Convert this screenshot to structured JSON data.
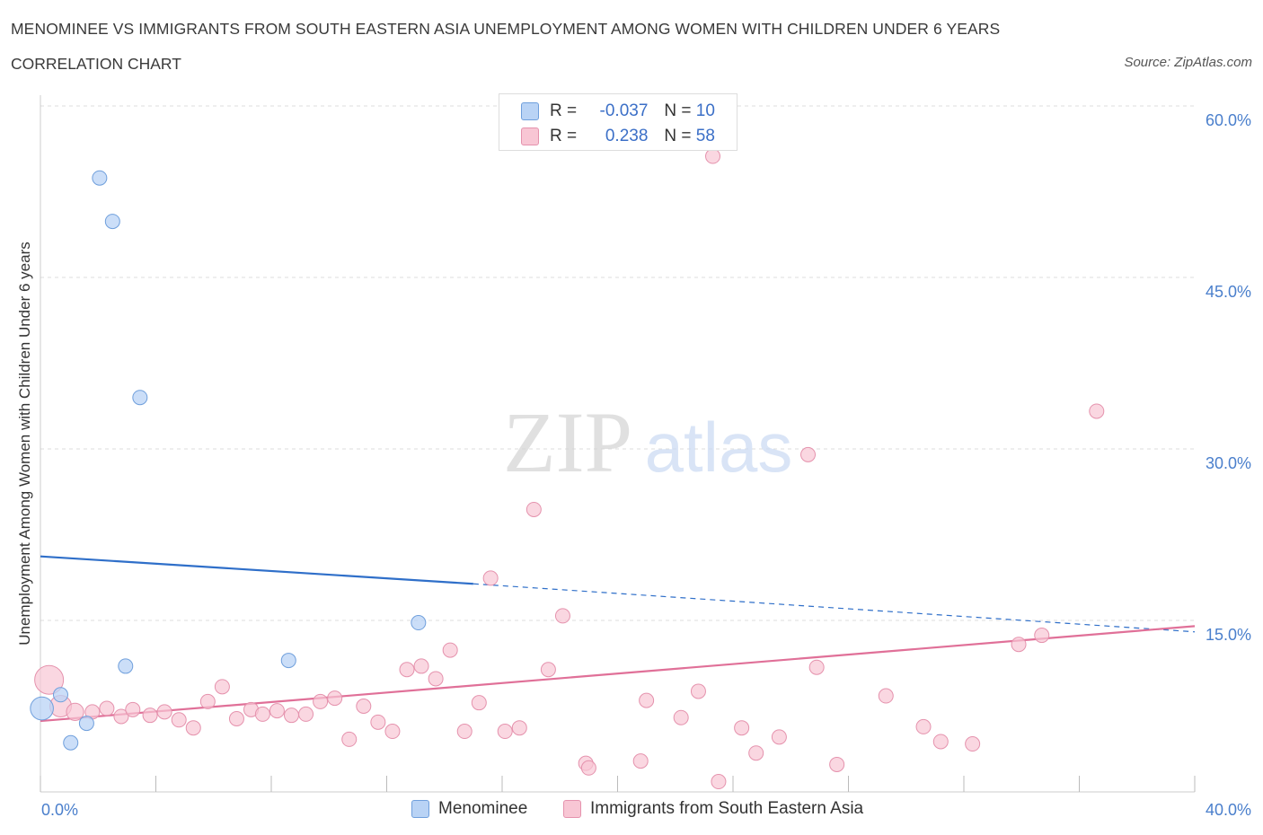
{
  "header": {
    "title": "MENOMINEE VS IMMIGRANTS FROM SOUTH EASTERN ASIA UNEMPLOYMENT AMONG WOMEN WITH CHILDREN UNDER 6 YEARS",
    "subtitle": "CORRELATION CHART",
    "source": "Source: ZipAtlas.com"
  },
  "watermark": {
    "zip": "ZIP",
    "atlas": "atlas"
  },
  "stats": {
    "r_label": "R =",
    "n_label": "N =",
    "rows": [
      {
        "r": "-0.037",
        "n": "10"
      },
      {
        "r": "0.238",
        "n": "58"
      }
    ]
  },
  "colors": {
    "menominee_fill": "#b9d3f5",
    "menominee_stroke": "#6f9fdc",
    "menominee_line": "#2f6fc9",
    "immigrants_fill": "#f8c6d4",
    "immigrants_stroke": "#e592ad",
    "immigrants_line": "#e07098",
    "tick_label": "#4a7fcc",
    "grid": "#dcdcdc"
  },
  "chart_data": {
    "type": "scatter",
    "title": "MENOMINEE VS IMMIGRANTS FROM SOUTH EASTERN ASIA UNEMPLOYMENT AMONG WOMEN WITH CHILDREN UNDER 6 YEARS",
    "xlabel": "",
    "ylabel": "Unemployment Among Women with Children Under 6 years",
    "xlim": [
      0,
      40
    ],
    "ylim": [
      0,
      60
    ],
    "x_tick_labels": [
      "0.0%",
      "40.0%"
    ],
    "y_ticks": [
      15,
      30,
      45,
      60
    ],
    "y_tick_labels": [
      "15.0%",
      "30.0%",
      "45.0%",
      "60.0%"
    ],
    "grid": true,
    "legend_position": "bottom",
    "series": [
      {
        "name": "Menominee",
        "r": -0.037,
        "n": 10,
        "points": [
          [
            0.05,
            7.3,
            1.6
          ],
          [
            0.7,
            8.5,
            1.0
          ],
          [
            1.05,
            4.3,
            1.0
          ],
          [
            1.6,
            6.0,
            1.0
          ],
          [
            2.05,
            53.7,
            1.0
          ],
          [
            2.5,
            49.9,
            1.0
          ],
          [
            2.95,
            11.0,
            1.0
          ],
          [
            3.45,
            34.5,
            1.0
          ],
          [
            8.6,
            11.5,
            1.0
          ],
          [
            13.1,
            14.8,
            1.0
          ]
        ],
        "trend": {
          "x_solid": [
            0,
            15
          ],
          "y_solid": [
            20.6,
            18.2
          ],
          "x_dashed": [
            15,
            40
          ],
          "y_dashed": [
            18.2,
            14.0
          ]
        }
      },
      {
        "name": "Immigrants from South Eastern Asia",
        "r": 0.238,
        "n": 58,
        "points": [
          [
            0.3,
            9.8,
            2.0
          ],
          [
            0.7,
            7.5,
            1.5
          ],
          [
            1.2,
            7.0,
            1.2
          ],
          [
            1.8,
            7.0,
            1.0
          ],
          [
            2.3,
            7.3,
            1.0
          ],
          [
            2.8,
            6.6,
            1.0
          ],
          [
            3.2,
            7.2,
            1.0
          ],
          [
            3.8,
            6.7,
            1.0
          ],
          [
            4.3,
            7.0,
            1.0
          ],
          [
            4.8,
            6.3,
            1.0
          ],
          [
            5.3,
            5.6,
            1.0
          ],
          [
            5.8,
            7.9,
            1.0
          ],
          [
            6.3,
            9.2,
            1.0
          ],
          [
            6.8,
            6.4,
            1.0
          ],
          [
            7.3,
            7.2,
            1.0
          ],
          [
            7.7,
            6.8,
            1.0
          ],
          [
            8.2,
            7.1,
            1.0
          ],
          [
            8.7,
            6.7,
            1.0
          ],
          [
            9.2,
            6.8,
            1.0
          ],
          [
            9.7,
            7.9,
            1.0
          ],
          [
            10.2,
            8.2,
            1.0
          ],
          [
            10.7,
            4.6,
            1.0
          ],
          [
            11.2,
            7.5,
            1.0
          ],
          [
            11.7,
            6.1,
            1.0
          ],
          [
            12.2,
            5.3,
            1.0
          ],
          [
            12.7,
            10.7,
            1.0
          ],
          [
            13.2,
            11.0,
            1.0
          ],
          [
            13.7,
            9.9,
            1.0
          ],
          [
            14.2,
            12.4,
            1.0
          ],
          [
            14.7,
            5.3,
            1.0
          ],
          [
            15.2,
            7.8,
            1.0
          ],
          [
            15.6,
            18.7,
            1.0
          ],
          [
            16.1,
            5.3,
            1.0
          ],
          [
            16.6,
            5.6,
            1.0
          ],
          [
            17.1,
            24.7,
            1.0
          ],
          [
            17.6,
            10.7,
            1.0
          ],
          [
            18.1,
            15.4,
            1.0
          ],
          [
            18.9,
            2.5,
            1.0
          ],
          [
            19.0,
            2.1,
            1.0
          ],
          [
            20.8,
            2.7,
            1.0
          ],
          [
            21.0,
            8.0,
            1.0
          ],
          [
            22.2,
            6.5,
            1.0
          ],
          [
            22.8,
            8.8,
            1.0
          ],
          [
            23.3,
            55.6,
            1.0
          ],
          [
            23.5,
            0.9,
            1.0
          ],
          [
            24.3,
            5.6,
            1.0
          ],
          [
            24.8,
            3.4,
            1.0
          ],
          [
            25.6,
            4.8,
            1.0
          ],
          [
            26.6,
            29.5,
            1.0
          ],
          [
            26.9,
            10.9,
            1.0
          ],
          [
            27.6,
            2.4,
            1.0
          ],
          [
            29.3,
            8.4,
            1.0
          ],
          [
            30.6,
            5.7,
            1.0
          ],
          [
            31.2,
            4.4,
            1.0
          ],
          [
            32.3,
            4.2,
            1.0
          ],
          [
            33.9,
            12.9,
            1.0
          ],
          [
            34.7,
            13.7,
            1.0
          ],
          [
            36.6,
            33.3,
            1.0
          ]
        ],
        "trend": {
          "x": [
            0,
            40
          ],
          "y": [
            6.2,
            14.5
          ]
        }
      }
    ]
  }
}
